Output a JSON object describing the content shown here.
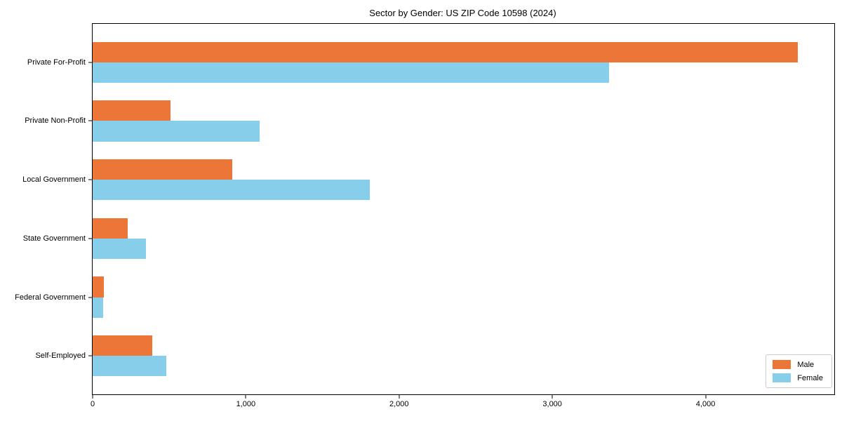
{
  "chart_data": {
    "type": "bar",
    "orientation": "horizontal",
    "title": "Sector by Gender: US ZIP Code 10598 (2024)",
    "categories": [
      "Private For-Profit",
      "Private Non-Profit",
      "Local Government",
      "State Government",
      "Federal Government",
      "Self-Employed"
    ],
    "series": [
      {
        "name": "Male",
        "color": "#ec7637",
        "values": [
          4600,
          510,
          910,
          230,
          75,
          390
        ]
      },
      {
        "name": "Female",
        "color": "#87ceeb",
        "values": [
          3370,
          1090,
          1810,
          350,
          70,
          480
        ]
      }
    ],
    "xlabel": "",
    "ylabel": "",
    "xlim": [
      0,
      4840
    ],
    "xticks": [
      0,
      1000,
      2000,
      3000,
      4000
    ],
    "xtick_labels": [
      "0",
      "1,000",
      "2,000",
      "3,000",
      "4,000"
    ],
    "grid": false,
    "legend_position": "lower right",
    "colors": {
      "male": "#ec7637",
      "female": "#87ceeb",
      "spine": "#000000",
      "legend_border": "#cccccc"
    }
  }
}
